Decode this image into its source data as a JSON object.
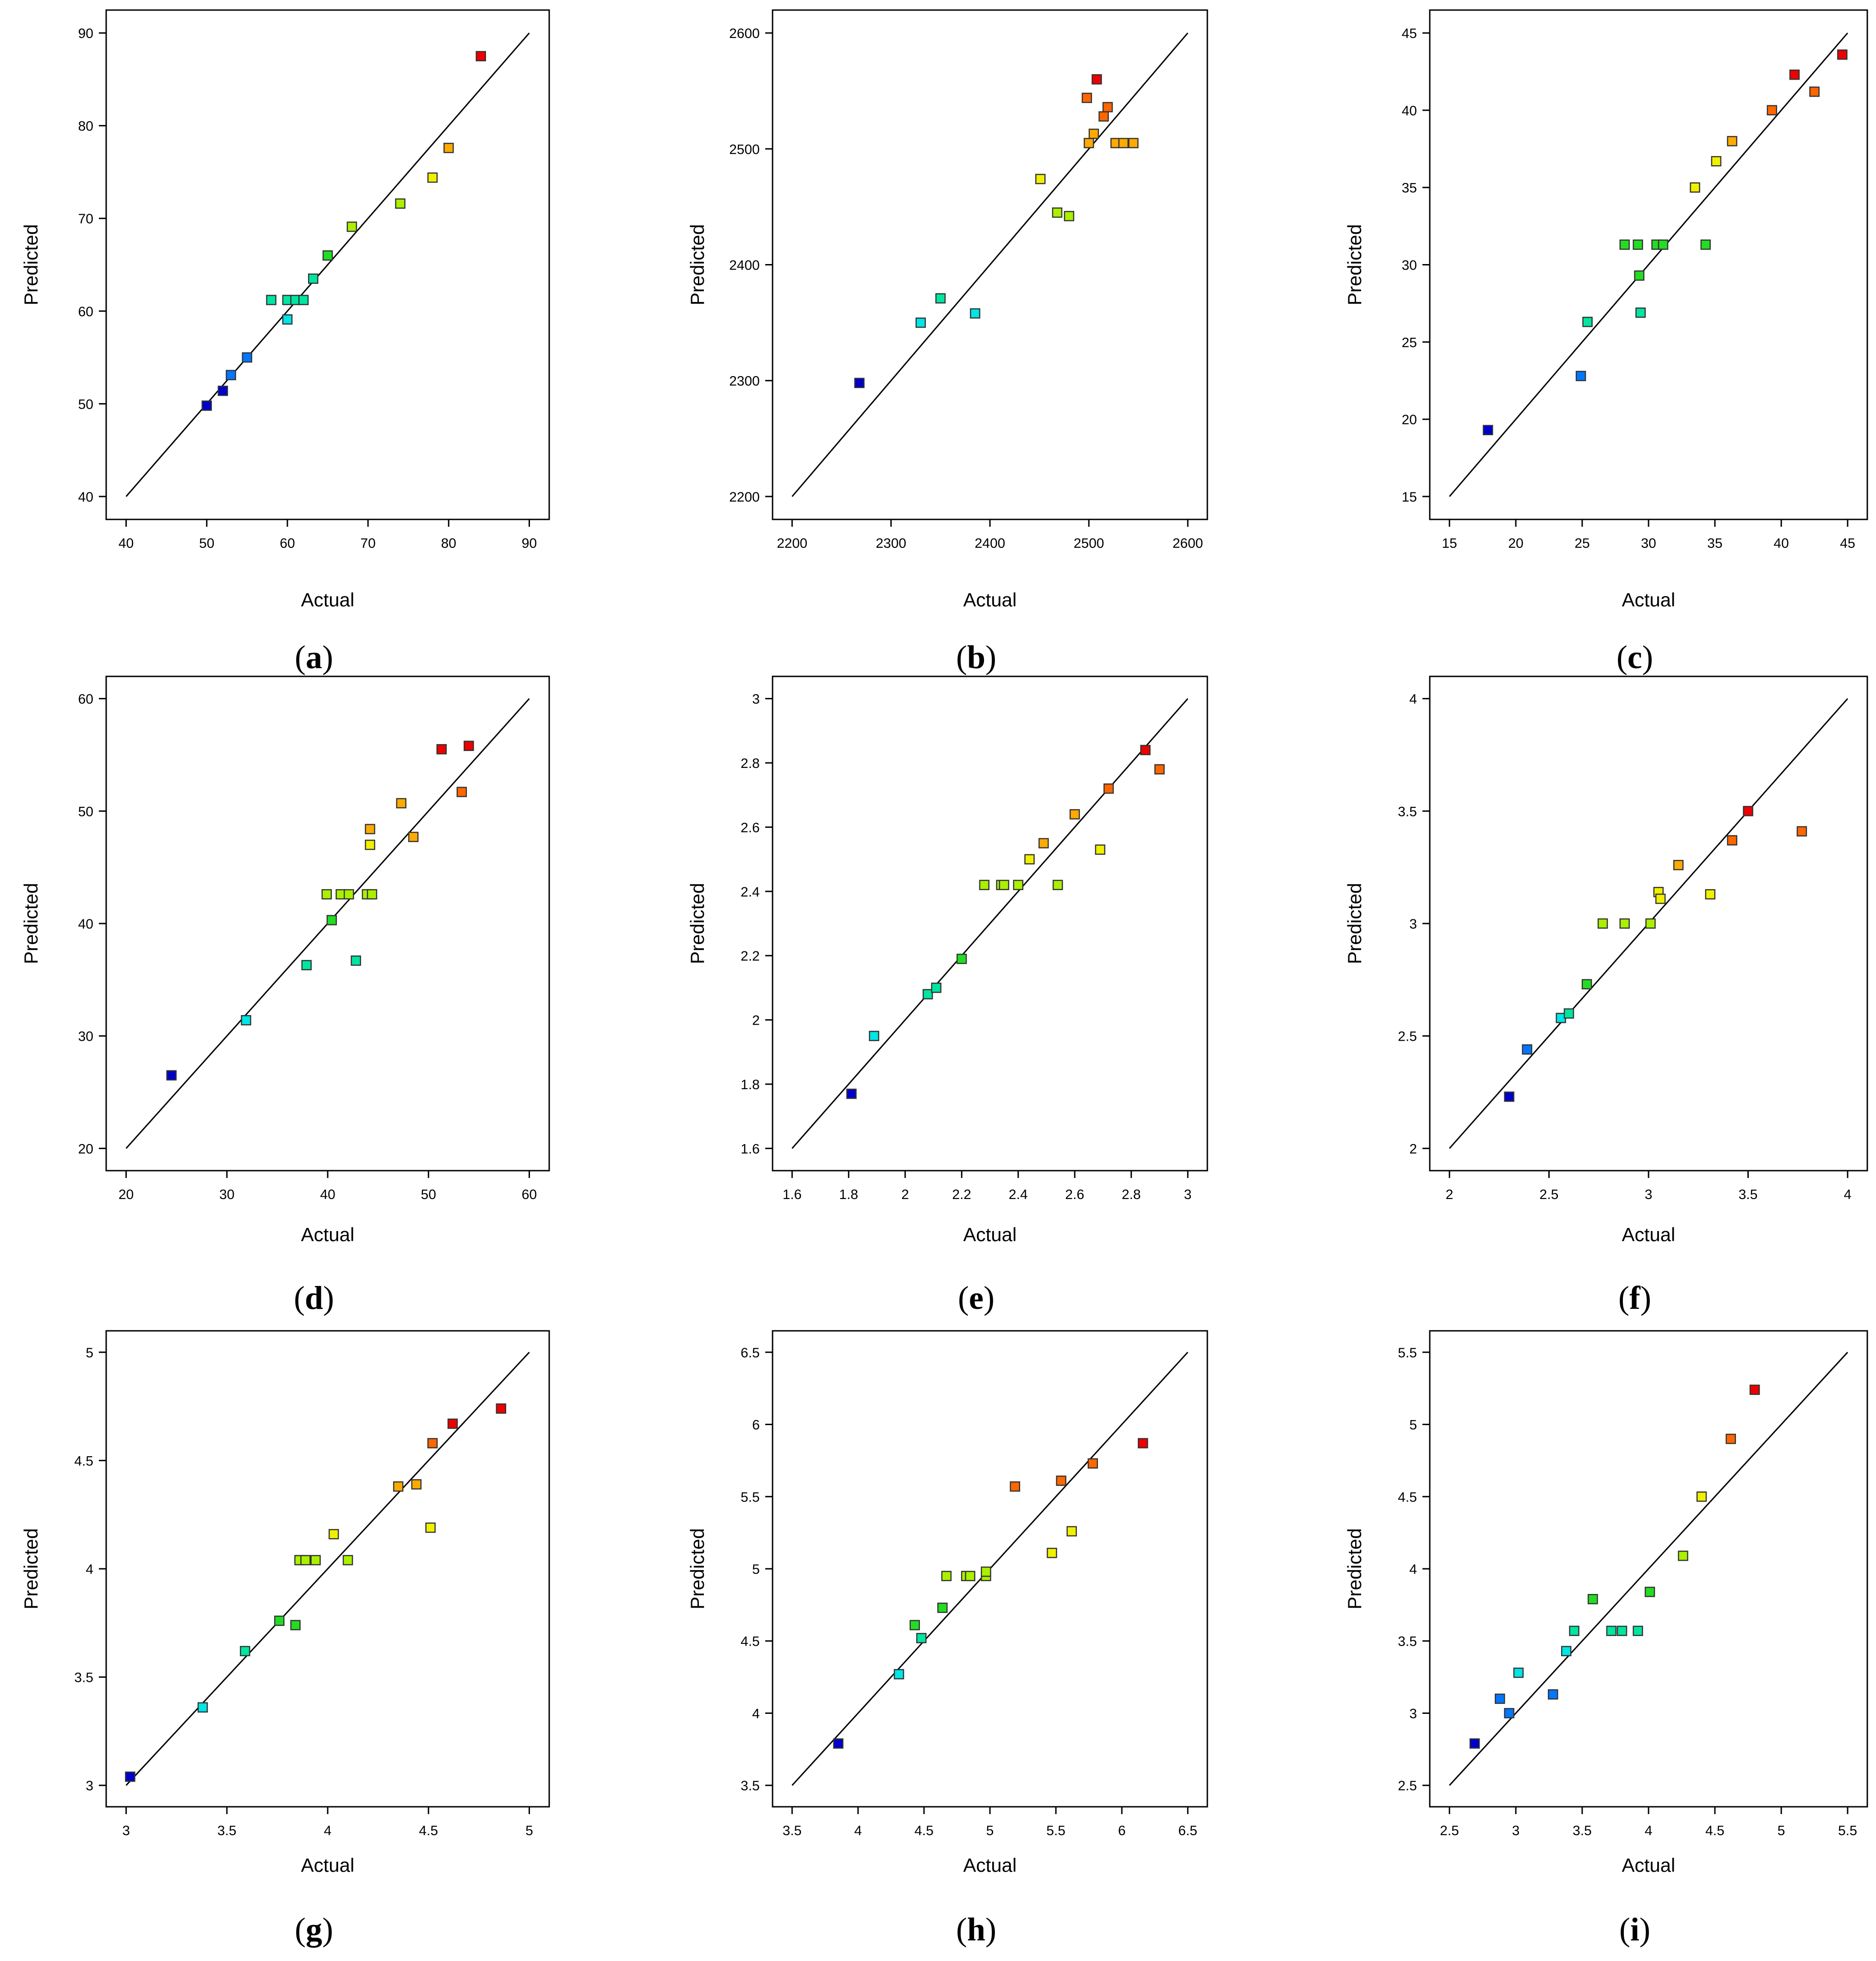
{
  "figure": {
    "panel_label_format": "({letter})",
    "palette": [
      "#0000cc",
      "#0077ff",
      "#00e5e5",
      "#00e5a0",
      "#22dd22",
      "#aaf000",
      "#f0f000",
      "#ffaa00",
      "#ff6600",
      "#ee0000"
    ]
  },
  "chart_data": [
    {
      "id": "a",
      "label": "a",
      "type": "scatter",
      "xlabel": "Actual",
      "ylabel": "Predicted",
      "xlim": [
        40,
        90
      ],
      "ylim": [
        40,
        90
      ],
      "xticks": [
        40,
        50,
        60,
        70,
        80,
        90
      ],
      "yticks": [
        40,
        50,
        60,
        70,
        80,
        90
      ],
      "xtick_labels": [
        "40",
        "50",
        "60",
        "70",
        "80",
        "90"
      ],
      "ytick_labels": [
        "40",
        "50",
        "60",
        "70",
        "80",
        "90"
      ],
      "fit_line": [
        40,
        90
      ],
      "points": [
        [
          50,
          49.8
        ],
        [
          52,
          51.4
        ],
        [
          53,
          53.1
        ],
        [
          55,
          55.0
        ],
        [
          58,
          61.2
        ],
        [
          60,
          61.2
        ],
        [
          61,
          61.2
        ],
        [
          62,
          61.2
        ],
        [
          60,
          59.1
        ],
        [
          63.2,
          63.5
        ],
        [
          65,
          66.0
        ],
        [
          68,
          69.1
        ],
        [
          74,
          71.6
        ],
        [
          78,
          74.4
        ],
        [
          80,
          77.6
        ],
        [
          84,
          87.5
        ]
      ]
    },
    {
      "id": "b",
      "label": "b",
      "type": "scatter",
      "xlabel": "Actual",
      "ylabel": "Predicted",
      "xlim": [
        2200,
        2600
      ],
      "ylim": [
        2200,
        2600
      ],
      "xticks": [
        2200,
        2300,
        2400,
        2500,
        2600
      ],
      "yticks": [
        2200,
        2300,
        2400,
        2500,
        2600
      ],
      "xtick_labels": [
        "2200",
        "2300",
        "2400",
        "2500",
        "2600"
      ],
      "ytick_labels": [
        "2200",
        "2300",
        "2400",
        "2500",
        "2600"
      ],
      "fit_line": [
        2200,
        2600
      ],
      "points": [
        [
          2268,
          2298
        ],
        [
          2330,
          2350
        ],
        [
          2350,
          2371
        ],
        [
          2385,
          2358
        ],
        [
          2451,
          2474
        ],
        [
          2468,
          2445
        ],
        [
          2480,
          2442
        ],
        [
          2498,
          2544
        ],
        [
          2500,
          2505
        ],
        [
          2505,
          2513
        ],
        [
          2508,
          2560
        ],
        [
          2515,
          2528
        ],
        [
          2519,
          2536
        ],
        [
          2527,
          2505
        ],
        [
          2535,
          2505
        ],
        [
          2545,
          2505
        ]
      ]
    },
    {
      "id": "c",
      "label": "c",
      "type": "scatter",
      "xlabel": "Actual",
      "ylabel": "Predicted",
      "xlim": [
        15,
        45
      ],
      "ylim": [
        15,
        45
      ],
      "xticks": [
        15,
        20,
        25,
        30,
        35,
        40,
        45
      ],
      "yticks": [
        15,
        20,
        25,
        30,
        35,
        40,
        45
      ],
      "xtick_labels": [
        "15",
        "20",
        "25",
        "30",
        "35",
        "40",
        "45"
      ],
      "ytick_labels": [
        "15",
        "20",
        "25",
        "30",
        "35",
        "40",
        "45"
      ],
      "fit_line": [
        15,
        45
      ],
      "points": [
        [
          17.9,
          19.3
        ],
        [
          24.9,
          22.8
        ],
        [
          25.4,
          26.3
        ],
        [
          28.2,
          31.3
        ],
        [
          29.2,
          31.3
        ],
        [
          29.3,
          29.3
        ],
        [
          29.4,
          26.9
        ],
        [
          30.6,
          31.3
        ],
        [
          31.1,
          31.3
        ],
        [
          33.5,
          35.0
        ],
        [
          34.3,
          31.3
        ],
        [
          35.1,
          36.7
        ],
        [
          36.3,
          38.0
        ],
        [
          39.3,
          40.0
        ],
        [
          41.0,
          42.3
        ],
        [
          42.5,
          41.2
        ],
        [
          44.6,
          43.6
        ]
      ]
    },
    {
      "id": "d",
      "label": "d",
      "type": "scatter",
      "xlabel": "Actual",
      "ylabel": "Predicted",
      "xlim": [
        20,
        60
      ],
      "ylim": [
        20,
        60
      ],
      "xticks": [
        20,
        30,
        40,
        50,
        60
      ],
      "yticks": [
        20,
        30,
        40,
        50,
        60
      ],
      "xtick_labels": [
        "20",
        "30",
        "40",
        "50",
        "60"
      ],
      "ytick_labels": [
        "20",
        "30",
        "40",
        "50",
        "60"
      ],
      "fit_line": [
        20,
        60
      ],
      "points": [
        [
          24.5,
          26.5
        ],
        [
          31.9,
          31.4
        ],
        [
          37.9,
          36.3
        ],
        [
          39.9,
          42.6
        ],
        [
          40.4,
          40.3
        ],
        [
          41.3,
          42.6
        ],
        [
          42.1,
          42.6
        ],
        [
          42.8,
          36.7
        ],
        [
          43.9,
          42.6
        ],
        [
          44.4,
          42.6
        ],
        [
          44.2,
          48.4
        ],
        [
          44.2,
          47.0
        ],
        [
          47.3,
          50.7
        ],
        [
          48.5,
          47.7
        ],
        [
          51.3,
          55.5
        ],
        [
          53.3,
          51.7
        ],
        [
          54.0,
          55.8
        ]
      ]
    },
    {
      "id": "e",
      "label": "e",
      "type": "scatter",
      "xlabel": "Actual",
      "ylabel": "Predicted",
      "xlim": [
        1.6,
        3.0
      ],
      "ylim": [
        1.6,
        3.0
      ],
      "xticks": [
        1.6,
        1.8,
        2.0,
        2.2,
        2.4,
        2.6,
        2.8,
        3.0
      ],
      "yticks": [
        1.6,
        1.8,
        2.0,
        2.2,
        2.4,
        2.6,
        2.8,
        3.0
      ],
      "xtick_labels": [
        "1.6",
        "1.8",
        "2",
        "2.2",
        "2.4",
        "2.6",
        "2.8",
        "3"
      ],
      "ytick_labels": [
        "1.6",
        "1.8",
        "2",
        "2.2",
        "2.4",
        "2.6",
        "2.8",
        "3"
      ],
      "fit_line": [
        1.6,
        3.0
      ],
      "points": [
        [
          1.81,
          1.77
        ],
        [
          1.89,
          1.95
        ],
        [
          2.08,
          2.08
        ],
        [
          2.11,
          2.1
        ],
        [
          2.2,
          2.19
        ],
        [
          2.28,
          2.42
        ],
        [
          2.34,
          2.42
        ],
        [
          2.35,
          2.42
        ],
        [
          2.4,
          2.42
        ],
        [
          2.44,
          2.5
        ],
        [
          2.49,
          2.55
        ],
        [
          2.54,
          2.42
        ],
        [
          2.6,
          2.64
        ],
        [
          2.69,
          2.53
        ],
        [
          2.72,
          2.72
        ],
        [
          2.85,
          2.84
        ],
        [
          2.9,
          2.78
        ]
      ]
    },
    {
      "id": "f",
      "label": "f",
      "type": "scatter",
      "xlabel": "Actual",
      "ylabel": "Predicted",
      "xlim": [
        2.0,
        4.0
      ],
      "ylim": [
        2.0,
        4.0
      ],
      "xticks": [
        2.0,
        2.5,
        3.0,
        3.5,
        4.0
      ],
      "yticks": [
        2.0,
        2.5,
        3.0,
        3.5,
        4.0
      ],
      "xtick_labels": [
        "2",
        "2.5",
        "3",
        "3.5",
        "4"
      ],
      "ytick_labels": [
        "2",
        "2.5",
        "3",
        "3.5",
        "4"
      ],
      "fit_line": [
        2.0,
        4.0
      ],
      "points": [
        [
          2.3,
          2.23
        ],
        [
          2.39,
          2.44
        ],
        [
          2.56,
          2.58
        ],
        [
          2.6,
          2.6
        ],
        [
          2.69,
          2.73
        ],
        [
          2.77,
          3.0
        ],
        [
          2.88,
          3.0
        ],
        [
          3.01,
          3.0
        ],
        [
          3.05,
          3.14
        ],
        [
          3.06,
          3.11
        ],
        [
          3.15,
          3.26
        ],
        [
          3.31,
          3.13
        ],
        [
          3.42,
          3.37
        ],
        [
          3.5,
          3.5
        ],
        [
          3.77,
          3.41
        ]
      ]
    },
    {
      "id": "g",
      "label": "g",
      "type": "scatter",
      "xlabel": "Actual",
      "ylabel": "Predicted",
      "xlim": [
        3.0,
        5.0
      ],
      "ylim": [
        3.0,
        5.0
      ],
      "xticks": [
        3.0,
        3.5,
        4.0,
        4.5,
        5.0
      ],
      "yticks": [
        3.0,
        3.5,
        4.0,
        4.5,
        5.0
      ],
      "xtick_labels": [
        "3",
        "3.5",
        "4",
        "4.5",
        "5"
      ],
      "ytick_labels": [
        "3",
        "3.5",
        "4",
        "4.5",
        "5"
      ],
      "fit_line": [
        3.0,
        5.0
      ],
      "points": [
        [
          3.02,
          3.04
        ],
        [
          3.38,
          3.36
        ],
        [
          3.59,
          3.62
        ],
        [
          3.76,
          3.76
        ],
        [
          3.84,
          3.74
        ],
        [
          3.86,
          4.04
        ],
        [
          3.89,
          4.04
        ],
        [
          3.94,
          4.04
        ],
        [
          4.03,
          4.16
        ],
        [
          4.1,
          4.04
        ],
        [
          4.35,
          4.38
        ],
        [
          4.44,
          4.39
        ],
        [
          4.51,
          4.19
        ],
        [
          4.52,
          4.58
        ],
        [
          4.62,
          4.67
        ],
        [
          4.86,
          4.74
        ]
      ]
    },
    {
      "id": "h",
      "label": "h",
      "type": "scatter",
      "xlabel": "Actual",
      "ylabel": "Predicted",
      "xlim": [
        3.5,
        6.5
      ],
      "ylim": [
        3.5,
        6.5
      ],
      "xticks": [
        3.5,
        4.0,
        4.5,
        5.0,
        5.5,
        6.0,
        6.5
      ],
      "yticks": [
        3.5,
        4.0,
        4.5,
        5.0,
        5.5,
        6.0,
        6.5
      ],
      "xtick_labels": [
        "3.5",
        "4",
        "4.5",
        "5",
        "5.5",
        "6",
        "6.5"
      ],
      "ytick_labels": [
        "3.5",
        "4",
        "4.5",
        "5",
        "5.5",
        "6",
        "6.5"
      ],
      "fit_line": [
        3.5,
        6.5
      ],
      "points": [
        [
          3.85,
          3.79
        ],
        [
          4.31,
          4.27
        ],
        [
          4.43,
          4.61
        ],
        [
          4.48,
          4.52
        ],
        [
          4.64,
          4.73
        ],
        [
          4.67,
          4.95
        ],
        [
          4.82,
          4.95
        ],
        [
          4.85,
          4.95
        ],
        [
          4.97,
          4.95
        ],
        [
          4.97,
          4.98
        ],
        [
          5.19,
          5.57
        ],
        [
          5.47,
          5.11
        ],
        [
          5.54,
          5.61
        ],
        [
          5.62,
          5.26
        ],
        [
          5.78,
          5.73
        ],
        [
          6.16,
          5.87
        ]
      ]
    },
    {
      "id": "i",
      "label": "i",
      "type": "scatter",
      "xlabel": "Actual",
      "ylabel": "Predicted",
      "xlim": [
        2.5,
        5.5
      ],
      "ylim": [
        2.5,
        5.5
      ],
      "xticks": [
        2.5,
        3.0,
        3.5,
        4.0,
        4.5,
        5.0,
        5.5
      ],
      "yticks": [
        2.5,
        3.0,
        3.5,
        4.0,
        4.5,
        5.0,
        5.5
      ],
      "xtick_labels": [
        "2.5",
        "3",
        "3.5",
        "4",
        "4.5",
        "5",
        "5.5"
      ],
      "ytick_labels": [
        "2.5",
        "3",
        "3.5",
        "4",
        "4.5",
        "5",
        "5.5"
      ],
      "fit_line": [
        2.5,
        5.5
      ],
      "points": [
        [
          2.69,
          2.79
        ],
        [
          2.88,
          3.1
        ],
        [
          2.95,
          3.0
        ],
        [
          3.02,
          3.28
        ],
        [
          3.28,
          3.13
        ],
        [
          3.38,
          3.43
        ],
        [
          3.44,
          3.57
        ],
        [
          3.58,
          3.79
        ],
        [
          3.72,
          3.57
        ],
        [
          3.8,
          3.57
        ],
        [
          3.92,
          3.57
        ],
        [
          4.01,
          3.84
        ],
        [
          4.26,
          4.09
        ],
        [
          4.4,
          4.5
        ],
        [
          4.62,
          4.9
        ],
        [
          4.8,
          5.24
        ]
      ]
    }
  ]
}
